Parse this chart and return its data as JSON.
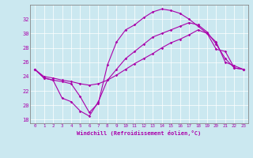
{
  "xlabel": "Windchill (Refroidissement éolien,°C)",
  "background_color": "#cbe8f0",
  "line_color": "#aa00aa",
  "xlim": [
    -0.5,
    23.5
  ],
  "ylim": [
    17.5,
    34.0
  ],
  "yticks": [
    18,
    20,
    22,
    24,
    26,
    28,
    30,
    32
  ],
  "xticks": [
    0,
    1,
    2,
    3,
    4,
    5,
    6,
    7,
    8,
    9,
    10,
    11,
    12,
    13,
    14,
    15,
    16,
    17,
    18,
    19,
    20,
    21,
    22,
    23
  ],
  "line1_x": [
    0,
    1,
    2,
    3,
    4,
    5,
    6,
    7,
    8,
    9,
    10,
    11,
    12,
    13,
    14,
    15,
    16,
    17,
    18,
    19,
    20,
    21,
    22,
    23
  ],
  "line1_y": [
    25.0,
    23.8,
    23.5,
    23.3,
    23.0,
    21.2,
    19.0,
    20.3,
    25.6,
    28.8,
    30.5,
    31.2,
    32.2,
    33.0,
    33.4,
    33.2,
    32.8,
    32.0,
    31.0,
    30.0,
    27.8,
    27.5,
    25.2,
    25.0
  ],
  "line2_x": [
    0,
    1,
    2,
    3,
    4,
    5,
    6,
    7,
    8,
    9,
    10,
    11,
    12,
    13,
    14,
    15,
    16,
    17,
    18,
    19,
    20,
    21,
    22,
    23
  ],
  "line2_y": [
    25.0,
    24.0,
    23.8,
    23.5,
    23.3,
    23.0,
    22.8,
    23.0,
    23.5,
    24.2,
    25.0,
    25.8,
    26.5,
    27.2,
    28.0,
    28.7,
    29.2,
    29.8,
    30.5,
    30.0,
    28.8,
    26.0,
    25.5,
    25.0
  ],
  "line3_x": [
    0,
    1,
    2,
    3,
    4,
    5,
    6,
    7,
    8,
    9,
    10,
    11,
    12,
    13,
    14,
    15,
    16,
    17,
    18,
    19,
    20,
    21,
    22,
    23
  ],
  "line3_y": [
    25.0,
    23.8,
    23.5,
    21.0,
    20.5,
    19.2,
    18.5,
    20.5,
    23.5,
    25.0,
    26.5,
    27.5,
    28.5,
    29.5,
    30.0,
    30.5,
    31.0,
    31.5,
    31.2,
    30.2,
    28.5,
    26.5,
    25.2,
    25.0
  ]
}
